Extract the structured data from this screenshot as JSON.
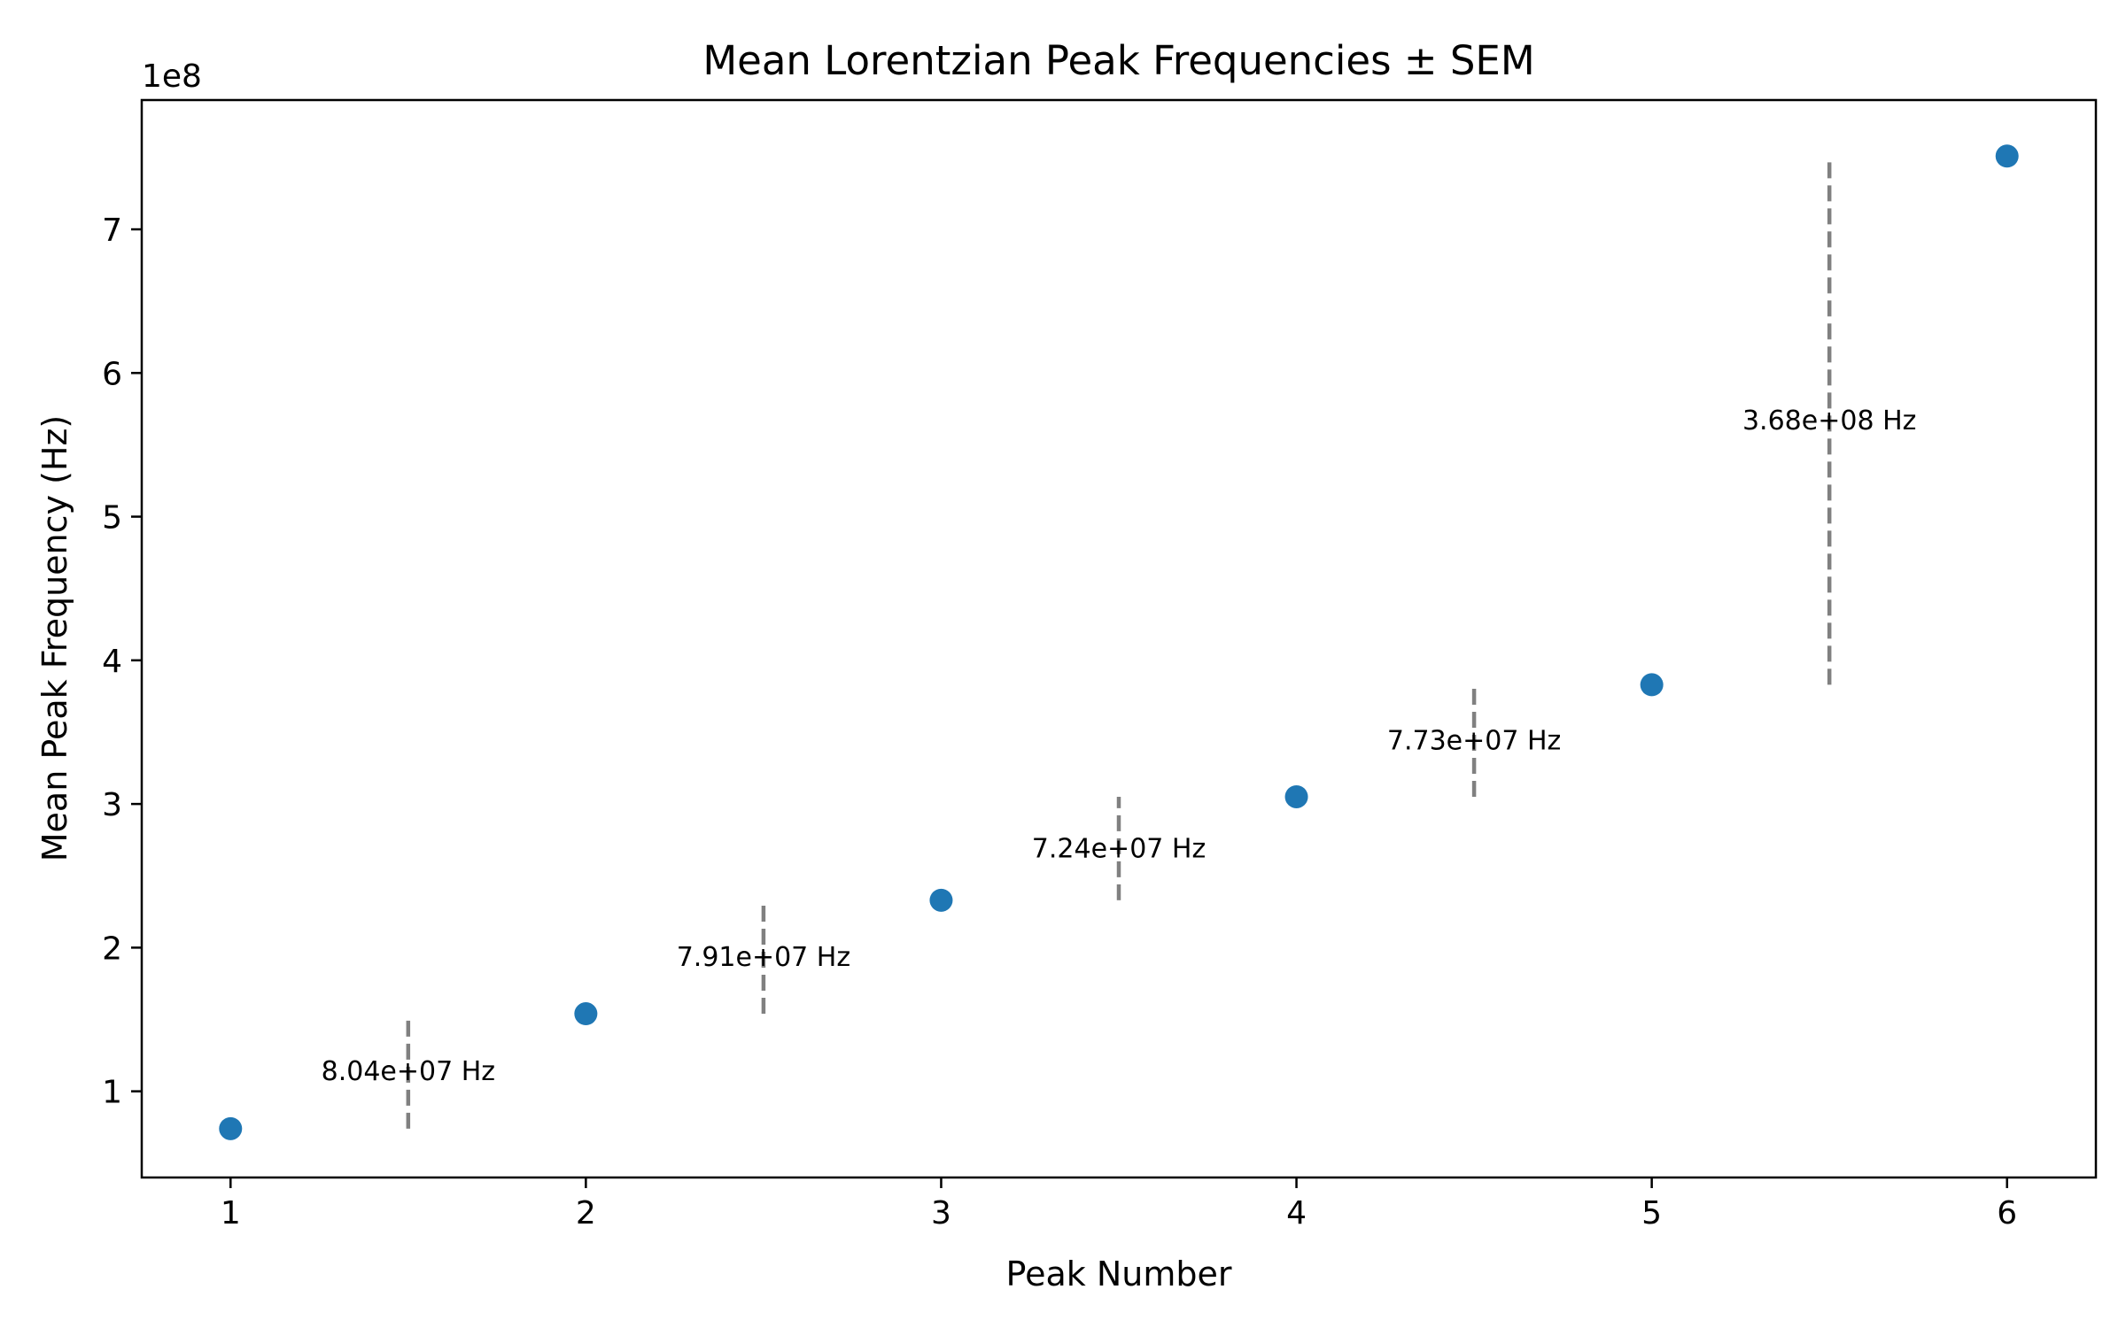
{
  "chart_data": {
    "type": "scatter",
    "title": "Mean Lorentzian Peak Frequencies ± SEM",
    "xlabel": "Peak Number",
    "ylabel": "Mean Peak Frequency (Hz)",
    "y_offset_label": "1e8",
    "xlim": [
      0.75,
      6.25
    ],
    "ylim": [
      40000000,
      790000000
    ],
    "x_ticks": [
      1,
      2,
      3,
      4,
      5,
      6
    ],
    "x_tick_labels": [
      "1",
      "2",
      "3",
      "4",
      "5",
      "6"
    ],
    "y_ticks": [
      100000000,
      200000000,
      300000000,
      400000000,
      500000000,
      600000000,
      700000000
    ],
    "y_tick_labels": [
      "1",
      "2",
      "3",
      "4",
      "5",
      "6",
      "7"
    ],
    "grid": false,
    "point_color": "#1f77b4",
    "points": [
      {
        "x": 1,
        "y": 74000000
      },
      {
        "x": 2,
        "y": 154000000
      },
      {
        "x": 3,
        "y": 233000000
      },
      {
        "x": 4,
        "y": 305000000
      },
      {
        "x": 5,
        "y": 383000000
      },
      {
        "x": 6,
        "y": 751000000
      }
    ],
    "difference_color": "#808080",
    "differences": [
      {
        "x": 1.5,
        "y_low": 74000000,
        "y_high": 154000000,
        "label": "8.04e+07 Hz"
      },
      {
        "x": 2.5,
        "y_low": 154000000,
        "y_high": 233000000,
        "label": "7.91e+07 Hz"
      },
      {
        "x": 3.5,
        "y_low": 233000000,
        "y_high": 305000000,
        "label": "7.24e+07 Hz"
      },
      {
        "x": 4.5,
        "y_low": 305000000,
        "y_high": 383000000,
        "label": "7.73e+07 Hz"
      },
      {
        "x": 5.5,
        "y_low": 383000000,
        "y_high": 751000000,
        "label": "3.68e+08 Hz"
      }
    ]
  }
}
